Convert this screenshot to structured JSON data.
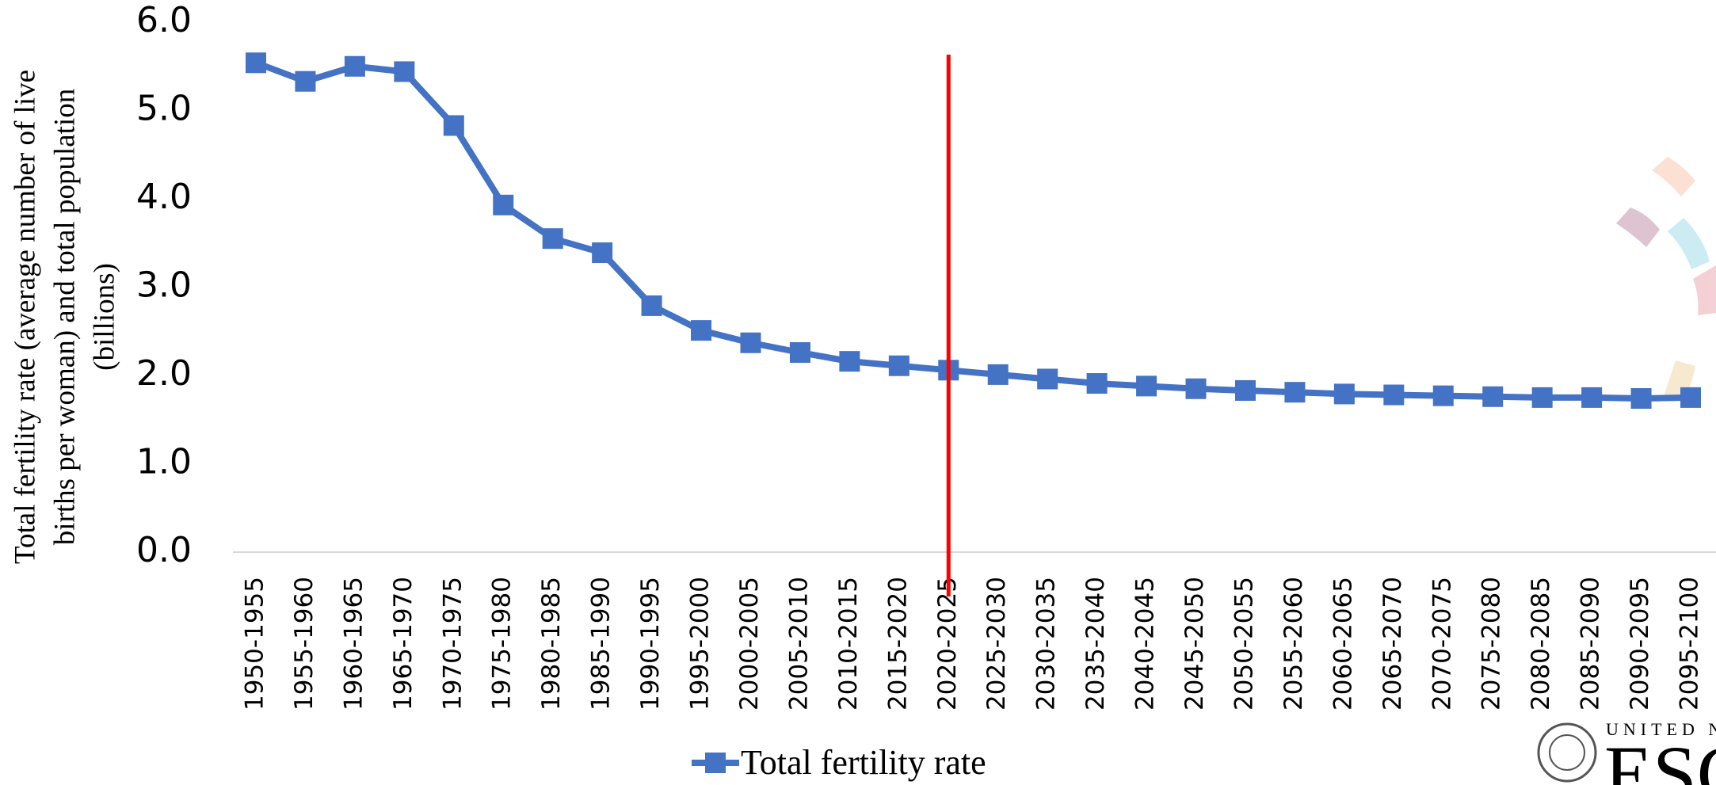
{
  "chart_data": {
    "type": "line",
    "ylabel": [
      "Total fertility rate (average number of live",
      "births per woman) and total population",
      "(billions)"
    ],
    "categories": [
      "1950-1955",
      "1955-1960",
      "1960-1965",
      "1965-1970",
      "1970-1975",
      "1975-1980",
      "1980-1985",
      "1985-1990",
      "1990-1995",
      "1995-2000",
      "2000-2005",
      "2005-2010",
      "2010-2015",
      "2015-2020",
      "2020-2025",
      "2025-2030",
      "2030-2035",
      "2035-2040",
      "2040-2045",
      "2045-2050",
      "2050-2055",
      "2055-2060",
      "2060-2065",
      "2065-2070",
      "2070-2075",
      "2075-2080",
      "2080-2085",
      "2085-2090",
      "2090-2095",
      "2095-2100"
    ],
    "series": [
      {
        "name": "Total fertility rate",
        "color": "#4472c4",
        "values": [
          5.54,
          5.33,
          5.5,
          5.44,
          4.83,
          3.93,
          3.55,
          3.39,
          2.79,
          2.51,
          2.37,
          2.26,
          2.16,
          2.11,
          2.06,
          2.01,
          1.96,
          1.91,
          1.88,
          1.85,
          1.83,
          1.81,
          1.79,
          1.78,
          1.77,
          1.76,
          1.75,
          1.75,
          1.74,
          1.75
        ]
      }
    ],
    "ylim": [
      0,
      6
    ],
    "yticks": [
      {
        "value": 0,
        "label": "0.0"
      },
      {
        "value": 1,
        "label": "1.0"
      },
      {
        "value": 2,
        "label": "2.0"
      },
      {
        "value": 3,
        "label": "3.0"
      },
      {
        "value": 4,
        "label": "4.0"
      },
      {
        "value": 5,
        "label": "5.0"
      },
      {
        "value": 6,
        "label": "6.0"
      }
    ],
    "grid": false,
    "legend": "bottom",
    "marker_line_color": "#ff0000"
  },
  "logo": {
    "line1": "UNITED N",
    "line2": "ESC"
  }
}
